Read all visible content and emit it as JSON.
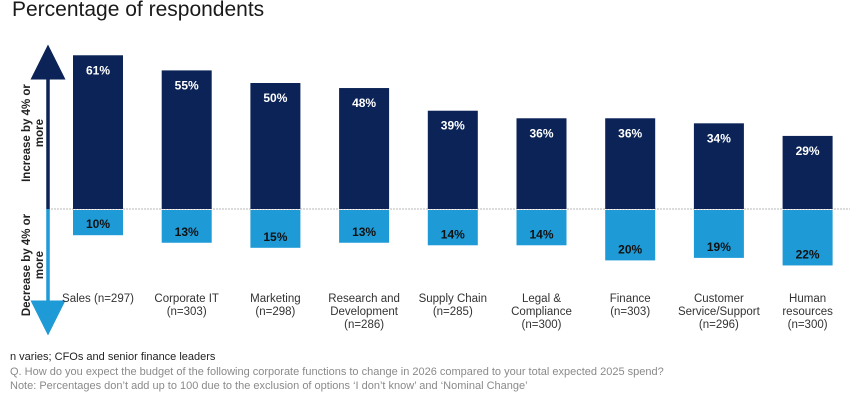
{
  "chart_data": {
    "type": "bar",
    "title": "Percentage of respondents",
    "xlabel": "",
    "ylabel_up": "Increase by 4% or more",
    "ylabel_down": "Decrease by 4% or more",
    "ylim": [
      -25,
      65
    ],
    "grid": false,
    "categories": [
      "Sales (n=297)",
      "Corporate IT\n(n=303)",
      "Marketing\n(n=298)",
      "Research and\nDevelopment\n(n=286)",
      "Supply Chain\n(n=285)",
      "Legal &\nCompliance\n(n=300)",
      "Finance\n(n=303)",
      "Customer\nService/Support\n(n=296)",
      "Human\nresources\n(n=300)"
    ],
    "series": [
      {
        "name": "Increase by 4% or more",
        "color": "#0b2356",
        "label_color": "#ffffff",
        "values": [
          61,
          55,
          50,
          48,
          39,
          36,
          36,
          34,
          29
        ]
      },
      {
        "name": "Decrease by 4% or more",
        "color": "#1e9ad6",
        "label_color": "#111111",
        "values": [
          10,
          13,
          15,
          13,
          14,
          14,
          20,
          19,
          22
        ]
      }
    ],
    "value_suffix": "%"
  },
  "footnotes": {
    "sample": "n varies; CFOs and senior finance leaders",
    "question": "Q. How do you expect the budget of the following corporate functions to change in 2026 compared to your total expected 2025 spend?",
    "note": "Note: Percentages don’t add up to 100 due to the exclusion of options ‘I don’t know’ and ‘Nominal Change’"
  }
}
